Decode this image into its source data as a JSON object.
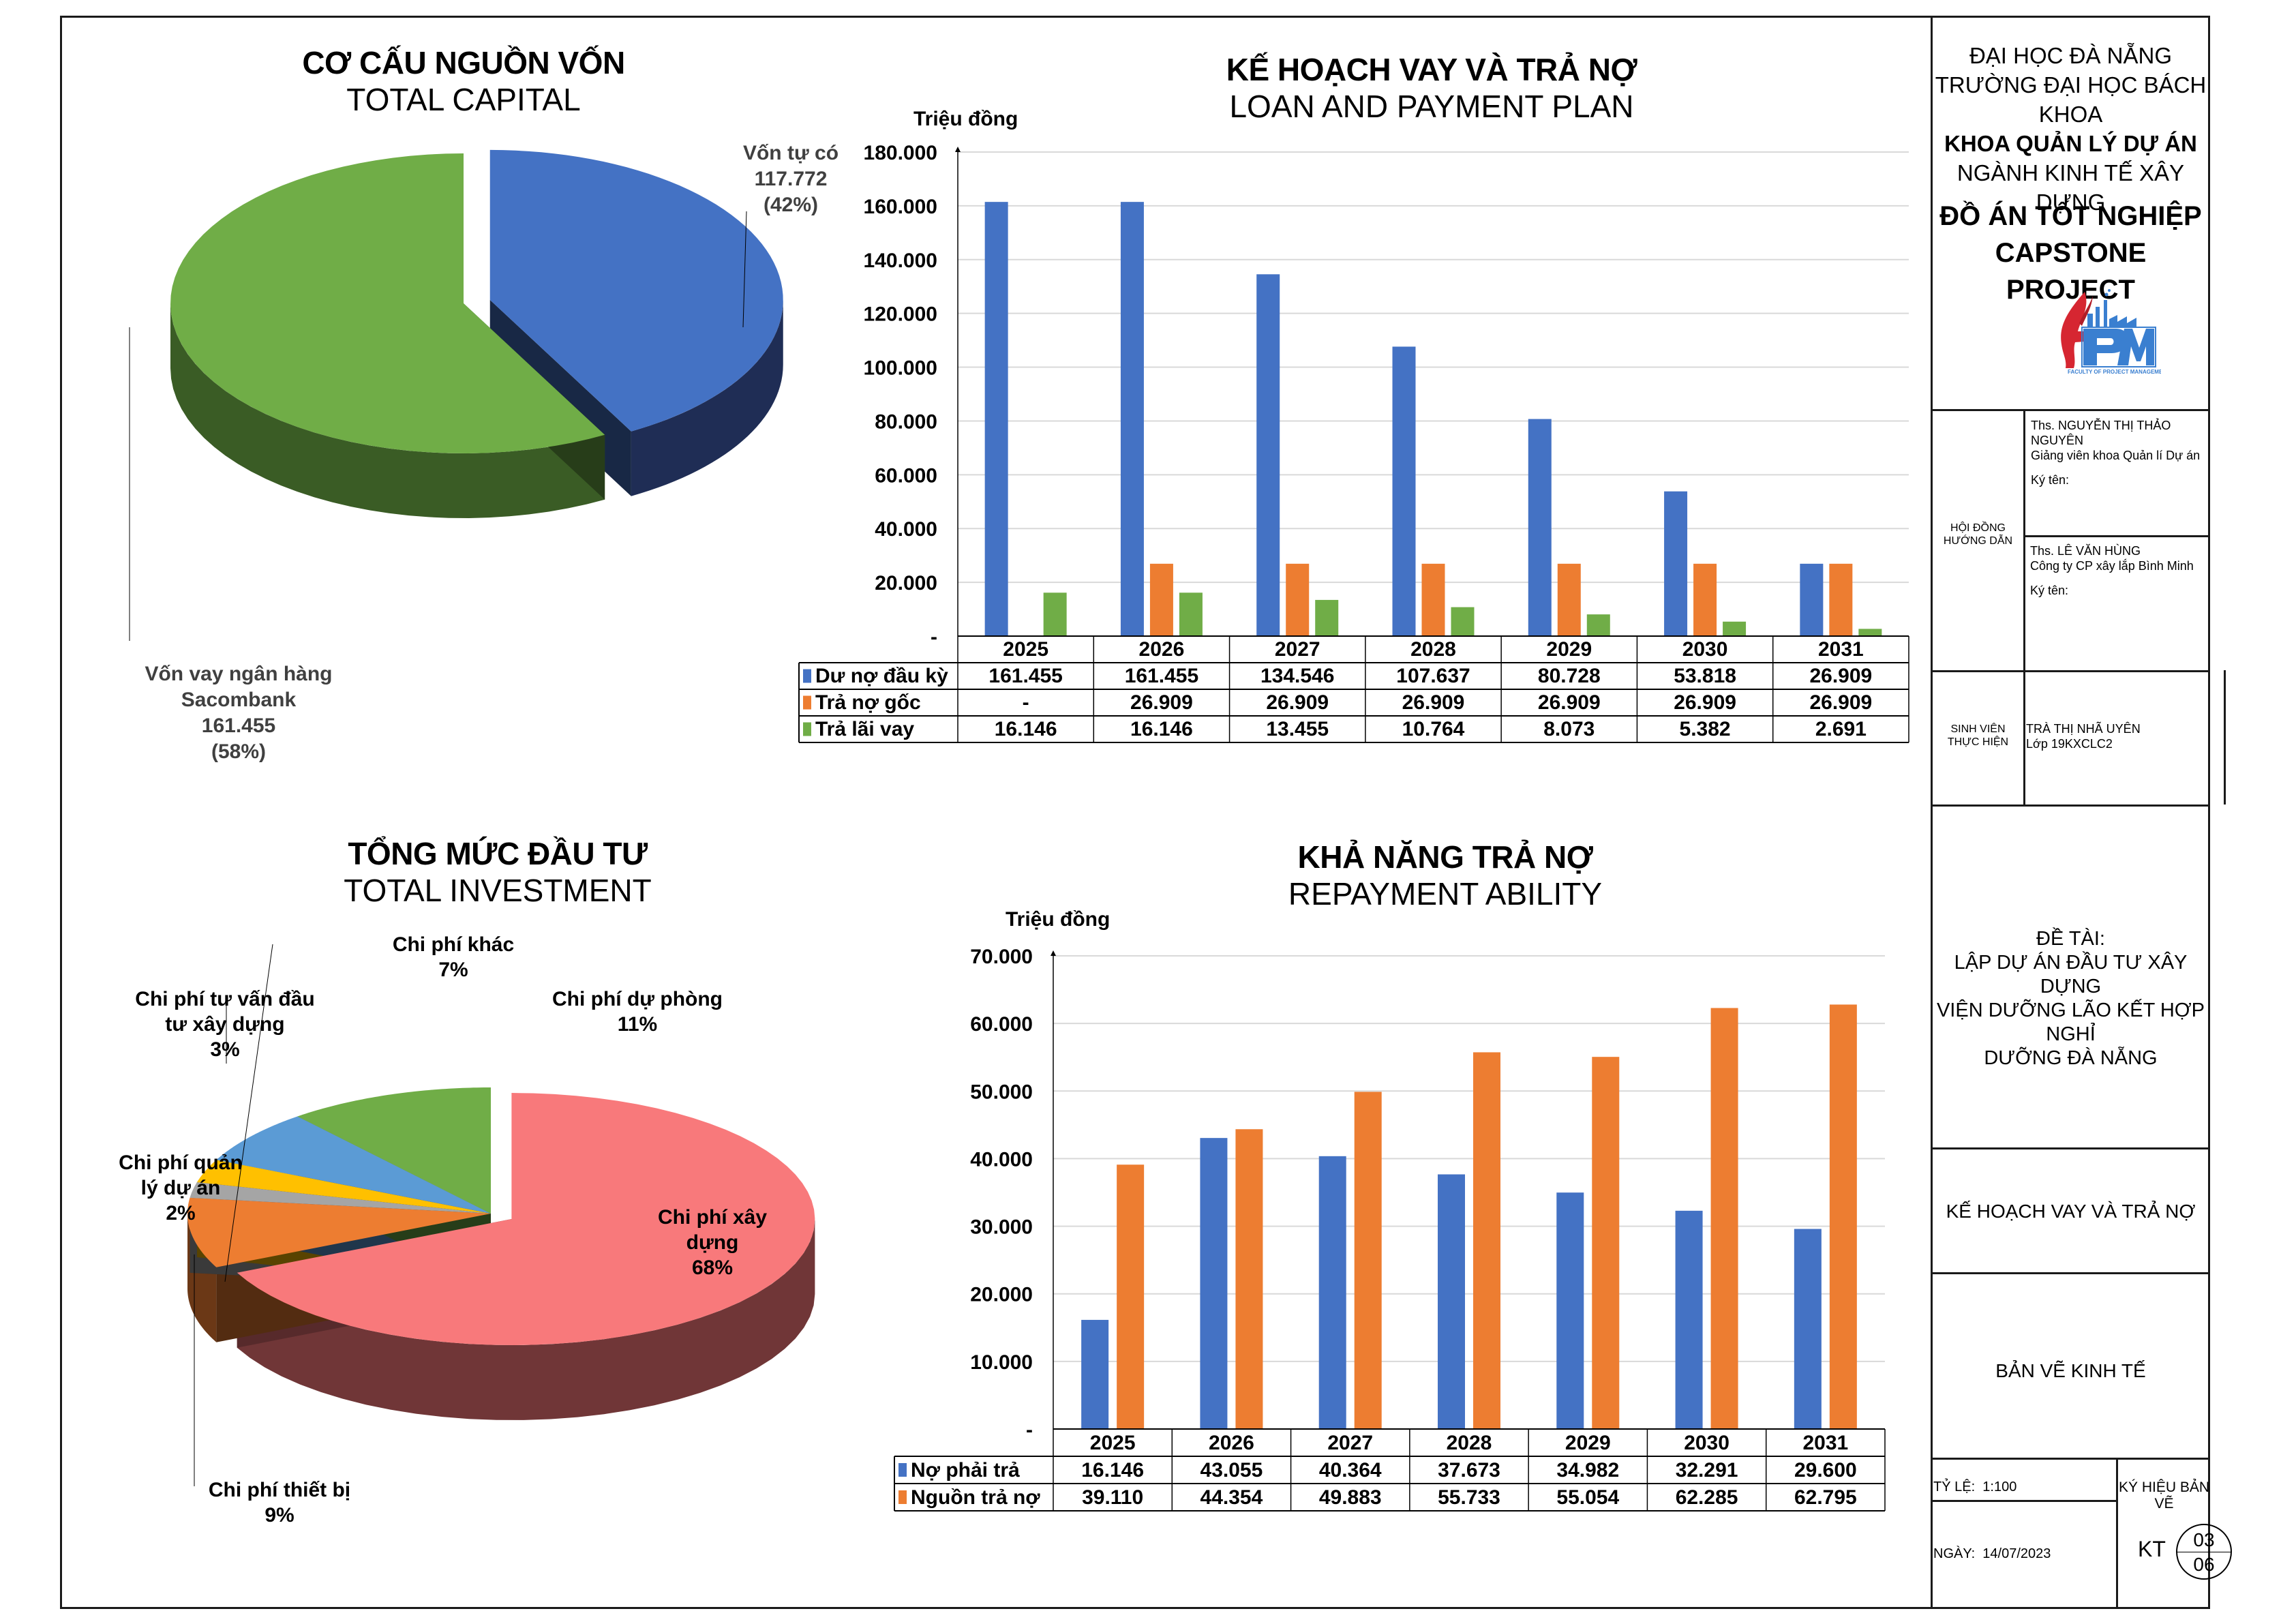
{
  "title_block": {
    "university": "ĐẠI HỌC ĐÀ NẴNG",
    "school": "TRƯỜNG ĐẠI HỌC BÁCH KHOA",
    "faculty": "KHOA QUẢN LÝ DỰ ÁN",
    "major": "NGÀNH KINH TẾ XÂY DỰNG",
    "project_vi": "ĐỒ ÁN TỐT NGHIỆP",
    "project_en": "CAPSTONE PROJECT",
    "logo": {
      "icon": "faculty-logo",
      "letters": "PM",
      "caption": "FACULTY OF PROJECT MANAGEMENT",
      "colors": {
        "red": "#d62631",
        "blue": "#3a7fd0"
      }
    },
    "advisors_label_1": "HỘI ĐỒNG",
    "advisors_label_2": "HƯỚNG DẪN",
    "advisors": [
      {
        "name": "Ths. NGUYỄN THỊ THẢO NGUYÊN",
        "role": "Giảng viên khoa Quản lí Dự án",
        "sign": "Ký tên:"
      },
      {
        "name": "Ths. LÊ VĂN HÙNG",
        "role": "Công ty CP xây lắp Bình Minh",
        "sign": "Ký tên:"
      }
    ],
    "student_label_1": "SINH VIÊN",
    "student_label_2": "THỰC HIỆN",
    "student_name": "TRÀ THỊ NHÃ UYÊN",
    "student_class": "Lớp 19KXCLC2",
    "topic_label": "ĐỀ TÀI:",
    "topic_lines": [
      "LẬP DỰ ÁN ĐẦU TƯ XÂY DỰNG",
      "VIỆN DƯỠNG LÃO KẾT HỢP NGHỈ",
      "DƯỠNG ĐÀ NẴNG"
    ],
    "drawing_name": "KẾ HOẠCH VAY VÀ TRẢ NỢ",
    "drawing_type": "BẢN VẼ KINH TẾ",
    "scale_label": "TỶ LỆ:",
    "scale_value": "1:100",
    "date_label": "NGÀY:",
    "date_value": "14/07/2023",
    "symbol_label": "KÝ HIỆU BẢN VẼ",
    "symbol_code": "KT",
    "sheet_number": "03",
    "sheet_total": "06"
  },
  "chart_data": [
    {
      "id": "capital",
      "type": "pie",
      "title": "CƠ CẤU NGUỒN VỐN",
      "subtitle": "TOTAL CAPITAL",
      "unit": "Triệu đồng",
      "slices": [
        {
          "label": "Vốn tự có",
          "value": 117772,
          "value_text": "117.772",
          "percent": 42,
          "percent_text": "(42%)",
          "color": "#4472c4",
          "side_color": "#1f2d55"
        },
        {
          "label": "Vốn vay ngân hàng Sacombank",
          "value": 161455,
          "value_text": "161.455",
          "percent": 58,
          "percent_text": "(58%)",
          "color": "#70ad47",
          "side_color": "#3a5c25"
        }
      ]
    },
    {
      "id": "loan-plan",
      "type": "bar",
      "title": "KẾ HOẠCH VAY VÀ TRẢ NỢ",
      "subtitle": "LOAN AND PAYMENT PLAN",
      "ylabel": "Triệu đồng",
      "ylim": [
        0,
        180000
      ],
      "yticks": [
        0,
        20000,
        40000,
        60000,
        80000,
        100000,
        120000,
        140000,
        160000,
        180000
      ],
      "ytick_labels": [
        "-",
        "20.000",
        "40.000",
        "60.000",
        "80.000",
        "100.000",
        "120.000",
        "140.000",
        "160.000",
        "180.000"
      ],
      "grid": true,
      "legend": "data-table",
      "categories": [
        "2025",
        "2026",
        "2027",
        "2028",
        "2029",
        "2030",
        "2031"
      ],
      "series": [
        {
          "name": "Dư nợ đầu kỳ",
          "color": "#4472c4",
          "values": [
            161455,
            161455,
            134546,
            107637,
            80728,
            53818,
            26909
          ],
          "labels": [
            "161.455",
            "161.455",
            "134.546",
            "107.637",
            "80.728",
            "53.818",
            "26.909"
          ]
        },
        {
          "name": "Trả nợ gốc",
          "color": "#ed7d31",
          "values": [
            0,
            26909,
            26909,
            26909,
            26909,
            26909,
            26909
          ],
          "labels": [
            "-",
            "26.909",
            "26.909",
            "26.909",
            "26.909",
            "26.909",
            "26.909"
          ]
        },
        {
          "name": "Trả lãi vay",
          "color": "#70ad47",
          "values": [
            16146,
            16146,
            13455,
            10764,
            8073,
            5382,
            2691
          ],
          "labels": [
            "16.146",
            "16.146",
            "13.455",
            "10.764",
            "8.073",
            "5.382",
            "2.691"
          ]
        }
      ]
    },
    {
      "id": "investment",
      "type": "pie",
      "title": "TỔNG MỨC ĐẦU TƯ",
      "subtitle": "TOTAL INVESTMENT",
      "slices": [
        {
          "label": "Chi phí xây dựng",
          "percent": 68,
          "percent_text": "68%",
          "color": "#f8797b"
        },
        {
          "label": "Chi phí thiết bị",
          "percent": 9,
          "percent_text": "9%",
          "color": "#ed7d31"
        },
        {
          "label": "Chi phí quản lý dự án",
          "percent": 2,
          "percent_text": "2%",
          "color": "#a5a5a5"
        },
        {
          "label": "Chi phí tư vấn đầu tư xây dựng",
          "percent": 3,
          "percent_text": "3%",
          "color": "#ffc000"
        },
        {
          "label": "Chi phí khác",
          "percent": 7,
          "percent_text": "7%",
          "color": "#5b9bd5"
        },
        {
          "label": "Chi phí dự phòng",
          "percent": 11,
          "percent_text": "11%",
          "color": "#70ad47"
        }
      ]
    },
    {
      "id": "repayment",
      "type": "bar",
      "title": "KHẢ NĂNG TRẢ NỢ",
      "subtitle": "REPAYMENT ABILITY",
      "ylabel": "Triệu đồng",
      "ylim": [
        0,
        70000
      ],
      "yticks": [
        0,
        10000,
        20000,
        30000,
        40000,
        50000,
        60000,
        70000
      ],
      "ytick_labels": [
        "-",
        "10.000",
        "20.000",
        "30.000",
        "40.000",
        "50.000",
        "60.000",
        "70.000"
      ],
      "grid": true,
      "legend": "data-table",
      "categories": [
        "2025",
        "2026",
        "2027",
        "2028",
        "2029",
        "2030",
        "2031"
      ],
      "series": [
        {
          "name": "Nợ phải trả",
          "color": "#4472c4",
          "values": [
            16146,
            43055,
            40364,
            37673,
            34982,
            32291,
            29600
          ],
          "labels": [
            "16.146",
            "43.055",
            "40.364",
            "37.673",
            "34.982",
            "32.291",
            "29.600"
          ]
        },
        {
          "name": "Nguồn trả nợ",
          "color": "#ed7d31",
          "values": [
            39110,
            44354,
            49883,
            55733,
            55054,
            62285,
            62795
          ],
          "labels": [
            "39.110",
            "44.354",
            "49.883",
            "55.733",
            "55.054",
            "62.285",
            "62.795"
          ]
        }
      ]
    }
  ]
}
